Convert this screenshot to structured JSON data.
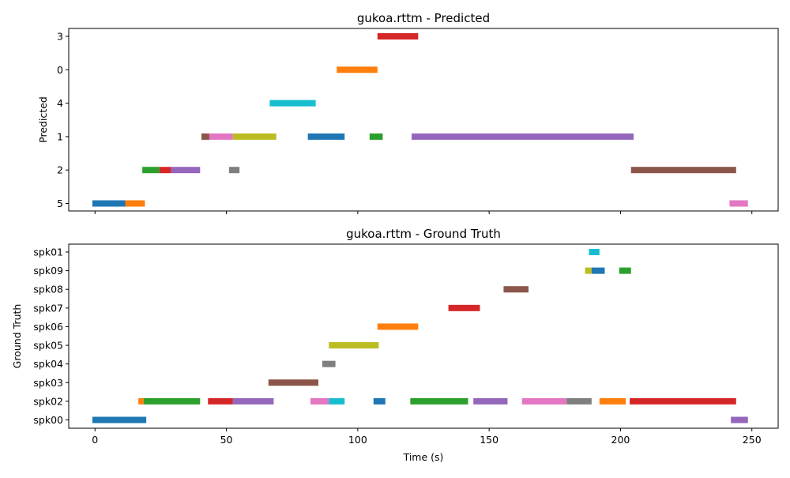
{
  "chart_data": [
    {
      "type": "timeline",
      "title": "gukoa.rttm - Predicted",
      "ylabel": "Predicted",
      "xlabel": "",
      "xlim": [
        -10,
        260
      ],
      "xticks": [
        0,
        50,
        100,
        150,
        200,
        250
      ],
      "show_xtick_labels": false,
      "grid": false,
      "rows": [
        "5",
        "2",
        "1",
        "4",
        "0",
        "3"
      ],
      "segments": [
        {
          "row": "5",
          "start": -1,
          "end": 11.5,
          "color": "#1f77b4"
        },
        {
          "row": "5",
          "start": 11.5,
          "end": 19,
          "color": "#ff7f0e"
        },
        {
          "row": "5",
          "start": 241.5,
          "end": 248.5,
          "color": "#e377c2"
        },
        {
          "row": "2",
          "start": 18,
          "end": 24.5,
          "color": "#2ca02c"
        },
        {
          "row": "2",
          "start": 24.5,
          "end": 29,
          "color": "#d62728"
        },
        {
          "row": "2",
          "start": 29,
          "end": 40,
          "color": "#9467bd"
        },
        {
          "row": "2",
          "start": 51,
          "end": 55,
          "color": "#7f7f7f"
        },
        {
          "row": "2",
          "start": 204,
          "end": 244,
          "color": "#8c564b"
        },
        {
          "row": "1",
          "start": 40.5,
          "end": 43.5,
          "color": "#8c564b"
        },
        {
          "row": "1",
          "start": 43.5,
          "end": 52.5,
          "color": "#e377c2"
        },
        {
          "row": "1",
          "start": 52.5,
          "end": 69,
          "color": "#bcbd22"
        },
        {
          "row": "1",
          "start": 81,
          "end": 95,
          "color": "#1f77b4"
        },
        {
          "row": "1",
          "start": 104.5,
          "end": 109.5,
          "color": "#2ca02c"
        },
        {
          "row": "1",
          "start": 120.5,
          "end": 205,
          "color": "#9467bd"
        },
        {
          "row": "4",
          "start": 66.5,
          "end": 84,
          "color": "#17becf"
        },
        {
          "row": "0",
          "start": 92,
          "end": 107.5,
          "color": "#ff7f0e"
        },
        {
          "row": "3",
          "start": 107.5,
          "end": 123,
          "color": "#d62728"
        }
      ]
    },
    {
      "type": "timeline",
      "title": "gukoa.rttm - Ground Truth",
      "ylabel": "Ground Truth",
      "xlabel": "Time (s)",
      "xlim": [
        -10,
        260
      ],
      "xticks": [
        0,
        50,
        100,
        150,
        200,
        250
      ],
      "show_xtick_labels": true,
      "grid": false,
      "rows": [
        "spk00",
        "spk02",
        "spk03",
        "spk04",
        "spk05",
        "spk06",
        "spk07",
        "spk08",
        "spk09",
        "spk01"
      ],
      "segments": [
        {
          "row": "spk00",
          "start": -1,
          "end": 19.5,
          "color": "#1f77b4"
        },
        {
          "row": "spk00",
          "start": 242,
          "end": 248.5,
          "color": "#9467bd"
        },
        {
          "row": "spk02",
          "start": 16.5,
          "end": 18.5,
          "color": "#ff7f0e"
        },
        {
          "row": "spk02",
          "start": 18.5,
          "end": 40,
          "color": "#2ca02c"
        },
        {
          "row": "spk02",
          "start": 43,
          "end": 52.5,
          "color": "#d62728"
        },
        {
          "row": "spk02",
          "start": 52.5,
          "end": 68,
          "color": "#9467bd"
        },
        {
          "row": "spk02",
          "start": 82,
          "end": 89,
          "color": "#e377c2"
        },
        {
          "row": "spk02",
          "start": 89,
          "end": 95,
          "color": "#17becf"
        },
        {
          "row": "spk02",
          "start": 106,
          "end": 110.5,
          "color": "#1f77b4"
        },
        {
          "row": "spk02",
          "start": 120,
          "end": 142,
          "color": "#2ca02c"
        },
        {
          "row": "spk02",
          "start": 144,
          "end": 157,
          "color": "#9467bd"
        },
        {
          "row": "spk02",
          "start": 162.5,
          "end": 179.5,
          "color": "#e377c2"
        },
        {
          "row": "spk02",
          "start": 179.5,
          "end": 189,
          "color": "#7f7f7f"
        },
        {
          "row": "spk02",
          "start": 192,
          "end": 202,
          "color": "#ff7f0e"
        },
        {
          "row": "spk02",
          "start": 203.5,
          "end": 244,
          "color": "#d62728"
        },
        {
          "row": "spk03",
          "start": 66,
          "end": 85,
          "color": "#8c564b"
        },
        {
          "row": "spk04",
          "start": 86.5,
          "end": 91.5,
          "color": "#7f7f7f"
        },
        {
          "row": "spk05",
          "start": 89,
          "end": 108,
          "color": "#bcbd22"
        },
        {
          "row": "spk06",
          "start": 107.5,
          "end": 123,
          "color": "#ff7f0e"
        },
        {
          "row": "spk07",
          "start": 134.5,
          "end": 146.5,
          "color": "#d62728"
        },
        {
          "row": "spk08",
          "start": 155.5,
          "end": 165,
          "color": "#8c564b"
        },
        {
          "row": "spk09",
          "start": 186.5,
          "end": 189,
          "color": "#bcbd22"
        },
        {
          "row": "spk09",
          "start": 189,
          "end": 194,
          "color": "#1f77b4"
        },
        {
          "row": "spk09",
          "start": 199.5,
          "end": 204,
          "color": "#2ca02c"
        },
        {
          "row": "spk01",
          "start": 188,
          "end": 192,
          "color": "#17becf"
        }
      ]
    }
  ]
}
